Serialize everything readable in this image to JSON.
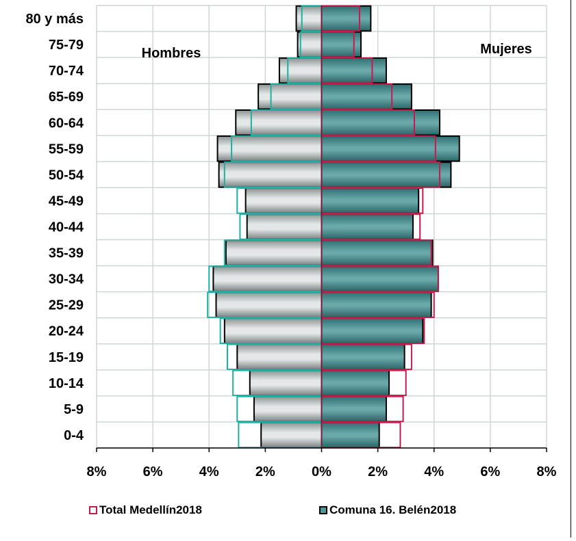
{
  "chart_data": {
    "type": "bar",
    "orientation": "horizontal",
    "categories": [
      "80 y más",
      "75-79",
      "70-74",
      "65-69",
      "60-64",
      "55-59",
      "50-54",
      "45-49",
      "40-44",
      "35-39",
      "30-34",
      "25-29",
      "20-24",
      "15-19",
      "10-14",
      "5-9",
      "0-4"
    ],
    "xlim": [
      -8,
      8
    ],
    "x_ticks": [
      -8,
      -6,
      -4,
      -2,
      0,
      2,
      4,
      6,
      8
    ],
    "x_tick_labels": [
      "8%",
      "6%",
      "4%",
      "2%",
      "0%",
      "2%",
      "4%",
      "6%",
      "8%"
    ],
    "grid": true,
    "left_label": "Hombres",
    "right_label": "Mujeres",
    "legend_position": "bottom",
    "series": [
      {
        "name": "Total Medellín2018",
        "style": "outline",
        "men": [
          0.7,
          0.75,
          1.2,
          1.8,
          2.5,
          3.2,
          3.45,
          3.0,
          2.9,
          3.45,
          4.0,
          4.05,
          3.6,
          3.35,
          3.15,
          3.0,
          2.95
        ],
        "women": [
          1.35,
          1.15,
          1.8,
          2.5,
          3.3,
          4.05,
          4.2,
          3.6,
          3.5,
          3.9,
          4.15,
          4.0,
          3.65,
          3.2,
          3.0,
          2.9,
          2.8
        ]
      },
      {
        "name": "Comuna 16. Belén2018",
        "style": "filled",
        "men": [
          0.9,
          0.85,
          1.5,
          2.25,
          3.05,
          3.7,
          3.65,
          2.7,
          2.65,
          3.4,
          3.85,
          3.75,
          3.45,
          3.0,
          2.55,
          2.4,
          2.15
        ],
        "women": [
          1.75,
          1.4,
          2.3,
          3.2,
          4.2,
          4.9,
          4.6,
          3.45,
          3.25,
          3.95,
          4.15,
          3.9,
          3.6,
          2.95,
          2.4,
          2.3,
          2.05
        ]
      }
    ]
  },
  "colors": {
    "men_fill": "#c9cccc",
    "women_fill": "#4f9698",
    "total_men_outline": "#1bb0a0",
    "total_women_outline": "#c8194a",
    "grid": "#cfd6d6",
    "axis": "#000000",
    "center_line": "#7a1a3a"
  }
}
